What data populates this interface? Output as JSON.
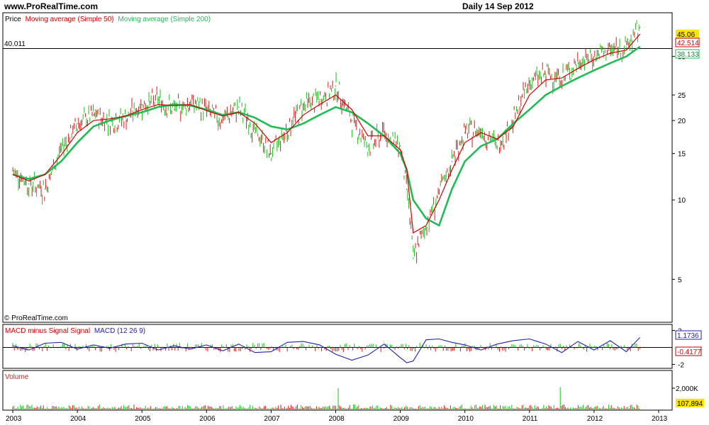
{
  "header": {
    "site": "www.ProRealTime.com",
    "period": "Daily  14 Sep 2012"
  },
  "price_panel": {
    "legend": [
      {
        "text": "Price",
        "color": "#000000"
      },
      {
        "text": "Moving average (Simple 50)",
        "color": "#cc0000"
      },
      {
        "text": "Moving average (Simple 200)",
        "color": "#22bb55"
      }
    ],
    "ref_label": "40.011",
    "copyright": "© ProRealTime.com",
    "last_price": "45.06",
    "sma50_last": "42.514",
    "sma200_last": "38.133"
  },
  "macd_panel": {
    "legend": [
      {
        "text": "MACD minus Signal Signal",
        "color": "#cc0000"
      },
      {
        "text": "MACD (12 26 9)",
        "color": "#2222aa"
      }
    ],
    "macd_last": "1.1736",
    "hist_last": "-0.4177"
  },
  "volume_panel": {
    "title": "Volume",
    "tick": "2,000K",
    "last": "107,894"
  },
  "colors": {
    "up": "#22bb22",
    "down": "#cc2222",
    "sma50": "#cc0000",
    "sma200": "#22bb55",
    "macd": "#2222aa",
    "badge": "#ffe400"
  },
  "chart_data": {
    "type": "line",
    "title": "",
    "y_scale": "log",
    "ylim": [
      3.5,
      50
    ],
    "y_ticks": [
      "5",
      "10",
      "15",
      "20",
      "25",
      "35"
    ],
    "x_ticks": [
      "2003",
      "2004",
      "2005",
      "2006",
      "2007",
      "2008",
      "2009",
      "2010",
      "2011",
      "2012",
      "2013"
    ],
    "x": [
      2003.0,
      2003.25,
      2003.5,
      2003.75,
      2004.0,
      2004.25,
      2004.5,
      2004.75,
      2005.0,
      2005.25,
      2005.5,
      2005.75,
      2006.0,
      2006.25,
      2006.5,
      2006.75,
      2007.0,
      2007.25,
      2007.5,
      2007.75,
      2008.0,
      2008.25,
      2008.5,
      2008.75,
      2009.0,
      2009.1,
      2009.2,
      2009.4,
      2009.6,
      2009.8,
      2010.0,
      2010.25,
      2010.5,
      2010.75,
      2011.0,
      2011.25,
      2011.5,
      2011.75,
      2012.0,
      2012.25,
      2012.5,
      2012.71
    ],
    "series": [
      {
        "name": "Price",
        "values": [
          13.0,
          11.5,
          11.0,
          15.5,
          19.5,
          21.0,
          20.0,
          20.5,
          23.0,
          24.0,
          22.0,
          23.5,
          22.0,
          20.0,
          22.5,
          18.0,
          15.0,
          18.5,
          23.0,
          24.0,
          27.0,
          20.0,
          16.0,
          18.0,
          16.0,
          11.0,
          6.0,
          8.0,
          10.5,
          14.0,
          18.0,
          18.5,
          16.0,
          20.0,
          28.0,
          30.0,
          29.0,
          33.0,
          35.0,
          37.0,
          38.0,
          45.06
        ]
      },
      {
        "name": "Moving average (Simple 50)",
        "values": [
          12.5,
          11.8,
          12.5,
          14.8,
          18.0,
          20.0,
          20.3,
          20.8,
          22.0,
          23.0,
          22.8,
          23.0,
          21.8,
          20.8,
          21.5,
          19.5,
          16.5,
          18.0,
          21.0,
          23.0,
          25.0,
          22.0,
          17.5,
          17.5,
          15.5,
          13.0,
          7.5,
          8.0,
          10.0,
          13.0,
          16.5,
          18.0,
          17.0,
          19.0,
          25.0,
          28.5,
          29.0,
          31.5,
          34.0,
          36.0,
          37.0,
          42.514
        ]
      },
      {
        "name": "Moving average (Simple 200)",
        "values": [
          12.5,
          12.0,
          12.5,
          14.0,
          16.5,
          19.0,
          20.0,
          20.8,
          21.5,
          22.5,
          23.0,
          22.8,
          22.0,
          21.0,
          21.5,
          20.5,
          19.0,
          18.5,
          19.5,
          21.0,
          22.5,
          21.5,
          19.5,
          17.5,
          15.0,
          13.0,
          10.0,
          8.5,
          8.0,
          11.0,
          14.0,
          16.0,
          17.0,
          19.5,
          22.0,
          25.0,
          27.0,
          29.0,
          31.0,
          33.0,
          35.0,
          38.133
        ]
      }
    ],
    "macd": {
      "y_ticks": [
        "2",
        "-2"
      ],
      "values": [
        0.2,
        -0.3,
        0.5,
        0.6,
        -0.2,
        0.3,
        -0.1,
        0.4,
        0.5,
        -0.3,
        0.2,
        -0.2,
        0.3,
        -0.4,
        0.4,
        -0.6,
        -0.5,
        0.6,
        0.7,
        0.3,
        -0.8,
        -1.5,
        -0.9,
        0.4,
        -1.2,
        -1.8,
        -1.6,
        0.9,
        1.0,
        0.6,
        0.3,
        -0.3,
        0.4,
        0.8,
        1.0,
        0.4,
        -0.6,
        0.7,
        -0.3,
        0.8,
        -0.5,
        1.1736
      ]
    }
  }
}
